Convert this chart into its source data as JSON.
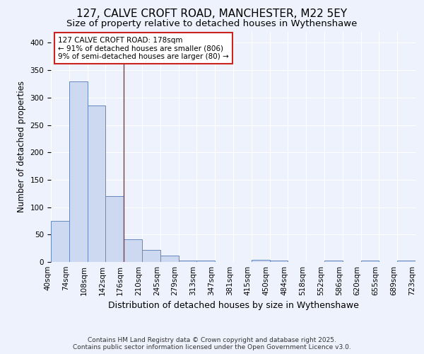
{
  "title1": "127, CALVE CROFT ROAD, MANCHESTER, M22 5EY",
  "title2": "Size of property relative to detached houses in Wythenshawe",
  "xlabel": "Distribution of detached houses by size in Wythenshawe",
  "ylabel": "Number of detached properties",
  "bar_values": [
    75,
    330,
    285,
    120,
    42,
    22,
    12,
    3,
    3,
    0,
    0,
    4,
    2,
    0,
    0,
    2,
    0,
    2,
    0,
    2
  ],
  "bar_labels": [
    "40sqm",
    "74sqm",
    "108sqm",
    "142sqm",
    "176sqm",
    "210sqm",
    "245sqm",
    "279sqm",
    "313sqm",
    "347sqm",
    "381sqm",
    "415sqm",
    "450sqm",
    "484sqm",
    "518sqm",
    "552sqm",
    "586sqm",
    "620sqm",
    "655sqm",
    "689sqm",
    "723sqm"
  ],
  "bar_color": "#ccd9f0",
  "bar_edge_color": "#6688bb",
  "vline_x": 3.5,
  "vline_color": "#993333",
  "annotation_text": "127 CALVE CROFT ROAD: 178sqm\n← 91% of detached houses are smaller (806)\n9% of semi-detached houses are larger (80) →",
  "annotation_box_facecolor": "#ffffff",
  "annotation_box_edgecolor": "#cc2222",
  "ylim": [
    0,
    420
  ],
  "yticks": [
    0,
    50,
    100,
    150,
    200,
    250,
    300,
    350,
    400
  ],
  "background_color": "#edf2fc",
  "grid_color": "#ffffff",
  "footer1": "Contains HM Land Registry data © Crown copyright and database right 2025.",
  "footer2": "Contains public sector information licensed under the Open Government Licence v3.0.",
  "title1_fontsize": 11,
  "title2_fontsize": 9.5,
  "xlabel_fontsize": 9,
  "ylabel_fontsize": 8.5,
  "tick_fontsize": 7.5,
  "annotation_fontsize": 7.5,
  "footer_fontsize": 6.5
}
